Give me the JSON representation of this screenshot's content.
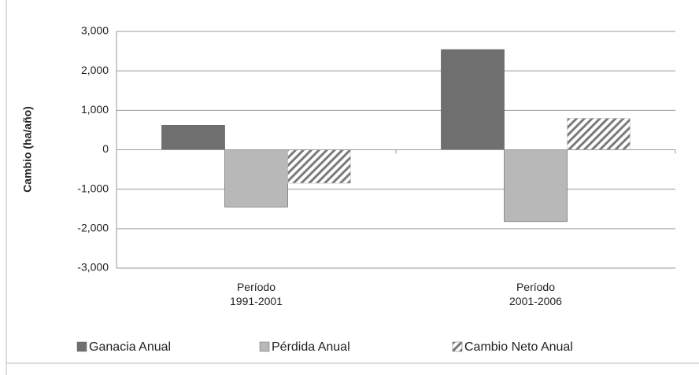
{
  "chart_data": {
    "type": "bar",
    "y_label": "Cambio (ha/año)",
    "categories": [
      "Período\n1991-2001",
      "Período\n2001-2006"
    ],
    "series": [
      {
        "name": "Ganacia Anual",
        "color": "#6f6f6f",
        "values": [
          620,
          2540
        ]
      },
      {
        "name": "Pérdida Anual",
        "color": "#b8b8b8",
        "values": [
          -1450,
          -1820
        ]
      },
      {
        "name": "Cambio Neto Anual",
        "color": "#7a7a7a",
        "pattern": "hatch",
        "values": [
          -850,
          800
        ]
      }
    ],
    "ylim": [
      -3000,
      3000
    ],
    "yticks": [
      {
        "value": -3000,
        "label": "-3,000"
      },
      {
        "value": -2000,
        "label": "-2,000"
      },
      {
        "value": -1000,
        "label": "-1,000"
      },
      0,
      {
        "value": 1000,
        "label": "1,000"
      },
      {
        "value": 2000,
        "label": "2,000"
      },
      {
        "value": 3000,
        "label": "3,000"
      }
    ],
    "grid": true,
    "legend": "bottom"
  }
}
